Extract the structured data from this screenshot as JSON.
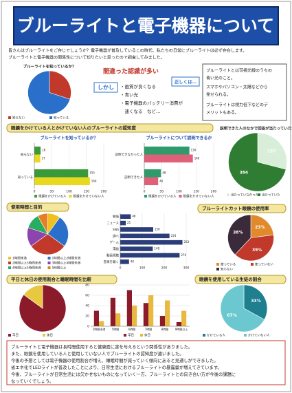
{
  "title": "ブルーライトと電子機器について",
  "intro": [
    "皆さんはブルーライトをご存じでしょうか？電子機器が普及しているこの時代、私たちの日常にブルーライトは必ず存在します。",
    "ブルーライトと電子機器の関係性について知りたいと思ったので調査してみました。"
  ],
  "misconception": {
    "heading": "間違った認識が多い",
    "however": "しかし",
    "items": [
      "・画質が良くなる",
      "・青い光",
      "・電子機器のバッテリー消費が",
      "　速くなる　など…"
    ],
    "correct": "正しくは…"
  },
  "definition": [
    "ブルーライトとは可視光線のうちの",
    "青い光のこと。",
    "スマホやパソコン・太陽などから",
    "発せられる。",
    "ブルーライトは視力低下などのデ",
    "メリットもある。"
  ],
  "sections": [
    "眼鏡をかけている人とかけていない人のブルーライトの認知度",
    "使用時間と目的",
    "ブルーライトカット眼鏡の使用率",
    "平日と休日の使用割合と睡眠時間を比較",
    "眼鏡を使用している生徒の割合"
  ],
  "conclusion": [
    "ブルーライトと電子機器は長時間使用すると健康面に害を与えるという関係性がありました。",
    "また、眼鏡を使用している人と使用していない人でブルーライトの認知度が違いました。",
    "今後の予想としては電子機器の使用割合が増え、睡眠時間が減っていく傾向にあると見通しができました。",
    "省エネ化でLEDライトが普及したことにより、日常生活におけるブルーライトの暴露量が増えてきています。",
    "今後、ブルーライトが日常生活には欠かせないものになっていく一方、ブルーライトとの向き合い方が今後の課題に",
    "なっていくでしょう。"
  ],
  "chart_data": [
    {
      "type": "pie",
      "title": "ブルーライトを知っているか？",
      "categories": [
        "知らない",
        "知っている"
      ],
      "values": [
        30,
        70
      ],
      "colors": [
        "#c0392b",
        "#2a6fc9"
      ]
    },
    {
      "type": "hbar",
      "title": "ブルーライトを知っているか？",
      "categories": [
        "知らない",
        "知っている"
      ],
      "series": [
        {
          "name": "眼鏡をかけている人",
          "color": "#3a9a3a",
          "values": [
            18,
            155
          ]
        },
        {
          "name": "眼鏡をかけていない人",
          "color": "#e8d820",
          "values": [
            17,
            160
          ]
        }
      ],
      "xlim": [
        0,
        200
      ],
      "xticks": [
        0,
        50,
        100,
        150,
        200
      ],
      "grid": true
    },
    {
      "type": "hbar",
      "title": "ブルーライトについて説明できるか",
      "categories": [
        "説明できなかった人",
        "説明できた人"
      ],
      "series": [
        {
          "name": "眼鏡をかけている人",
          "color": "#2f9a6a",
          "values": [
            130,
            48
          ]
        },
        {
          "name": "眼鏡をかけていない人",
          "color": "#e0607a",
          "values": [
            140,
            40
          ]
        }
      ],
      "xlim": [
        0,
        200
      ],
      "xticks": [
        0,
        50,
        100,
        150,
        200
      ],
      "grid": true
    },
    {
      "type": "pie",
      "title": "説明できた人のなかで回答が当たっていたか",
      "categories": [
        "当たっていなかった",
        "当たっていた"
      ],
      "values": [
        157,
        384
      ],
      "colors": [
        "#d8eed8",
        "#2e7d32"
      ],
      "value_labels": [
        "157",
        "384"
      ]
    },
    {
      "type": "pie",
      "categories": [
        "1時間未満",
        "1時間以上2時間未満",
        "2時間以上3時間未満",
        "3時間以上4時間未満",
        "4時間以上5時間未満",
        "5時間以上"
      ],
      "values": [
        10,
        25,
        30,
        15,
        12,
        8
      ],
      "colors": [
        "#f0c020",
        "#2a6fc9",
        "#c0392b",
        "#8e44ad",
        "#27ae60",
        "#e67e22"
      ]
    },
    {
      "type": "hbar",
      "categories": [
        "勉強",
        "ニュース",
        "SNS",
        "調べ",
        "ゲーム",
        "漫画",
        "動画視聴",
        "音楽を聴く"
      ],
      "values": [
        48,
        25,
        150,
        224,
        283,
        148,
        270,
        40
      ],
      "color": "#2c3e7a",
      "xlim": [
        0,
        300
      ],
      "xticks": [
        0,
        100,
        200,
        300
      ],
      "grid": true
    },
    {
      "type": "pie",
      "categories": [
        "使っている",
        "使っていない",
        "知らない"
      ],
      "values": [
        23,
        39,
        38
      ],
      "colors": [
        "#e08a2c",
        "#c0392b",
        "#3a2a3a"
      ],
      "value_labels": [
        "23%",
        "39%",
        "38%"
      ]
    },
    {
      "type": "pie",
      "categories": [
        "平日",
        "休日"
      ],
      "values": [
        85,
        15
      ],
      "colors": [
        "#8b1a2a",
        "#e8c840"
      ]
    },
    {
      "type": "column",
      "categories": [
        "5時間未満",
        "5時間",
        "6時間",
        "7時間",
        "8時間",
        "9時間以上"
      ],
      "series": [
        {
          "name": "平日",
          "color": "#8b1a2a",
          "values": [
            30,
            55,
            70,
            45,
            20,
            8
          ]
        },
        {
          "name": "休日",
          "color": "#e8b840",
          "values": [
            10,
            25,
            40,
            60,
            50,
            30
          ]
        }
      ],
      "ylim": [
        0,
        80
      ],
      "yticks": [
        0,
        20,
        40,
        60,
        80
      ],
      "grid": true
    },
    {
      "type": "pie",
      "categories": [
        "かけている人",
        "かけていない人"
      ],
      "values": [
        33,
        67
      ],
      "colors": [
        "#1f7f8f",
        "#6cc8d0"
      ],
      "value_labels": [
        "33%",
        "67%"
      ]
    }
  ]
}
